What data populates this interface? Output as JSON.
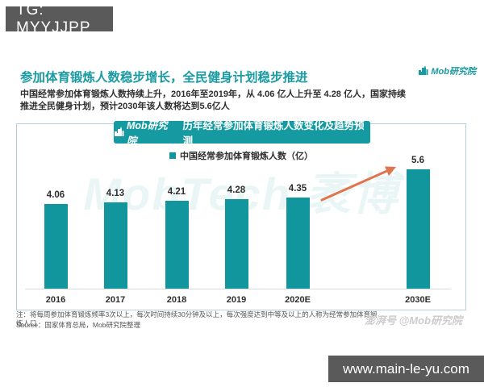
{
  "overlays": {
    "tg_label": "TG: MYYJJPP",
    "url_label": "www.main-le-yu.com"
  },
  "header": {
    "brand": "Mob研究院",
    "title": "参加体育锻炼人数稳步增长，全民健身计划稳步推进",
    "body_line1": "中国经常参加体育锻炼人数持续上升，2016年至2019年，从 4.06 亿人上升至 4.28 亿人，国家持续",
    "body_line2": "推进全民健身计划，预计2030年该人数将达到5.6亿人"
  },
  "chart": {
    "badge_brand": "Mob研究院",
    "badge_title": "历年经常参加体育锻炼人数变化及趋势预测",
    "legend_label": "中国经常参加体育锻炼人数（亿）",
    "watermark": "MobTech 袤博"
  },
  "chart_data": {
    "type": "bar",
    "title": "历年经常参加体育锻炼人数变化及趋势预测",
    "categories": [
      "2016",
      "2017",
      "2018",
      "2019",
      "2020E",
      "2030E"
    ],
    "values": [
      4.06,
      4.13,
      4.21,
      4.28,
      4.35,
      5.6
    ],
    "series_name": "中国经常参加体育锻炼人数（亿）",
    "unit": "亿",
    "bar_color": "#12969d",
    "arrow_color": "#e0744e",
    "legend_position": "top",
    "grid": false,
    "annotation": "orange trend arrow from 2020E bar toward 5.6 value of 2030E"
  },
  "footer": {
    "note": "注：将每周参加体育锻炼频率3次以上，每次时间持续30分钟及以上，每次强度达到中等及以上的人称为经常参加体育锻炼人口",
    "source": "Source：国家体育总局，Mob研究院整理",
    "watermark": "澎湃号 @Mob研究院"
  },
  "colors": {
    "accent_teal": "#159aa1",
    "title_teal": "#1a9aa1",
    "arrow_orange": "#e0744e",
    "overlay_gray": "#5a5a5a",
    "card_border": "#b7cfdc"
  }
}
